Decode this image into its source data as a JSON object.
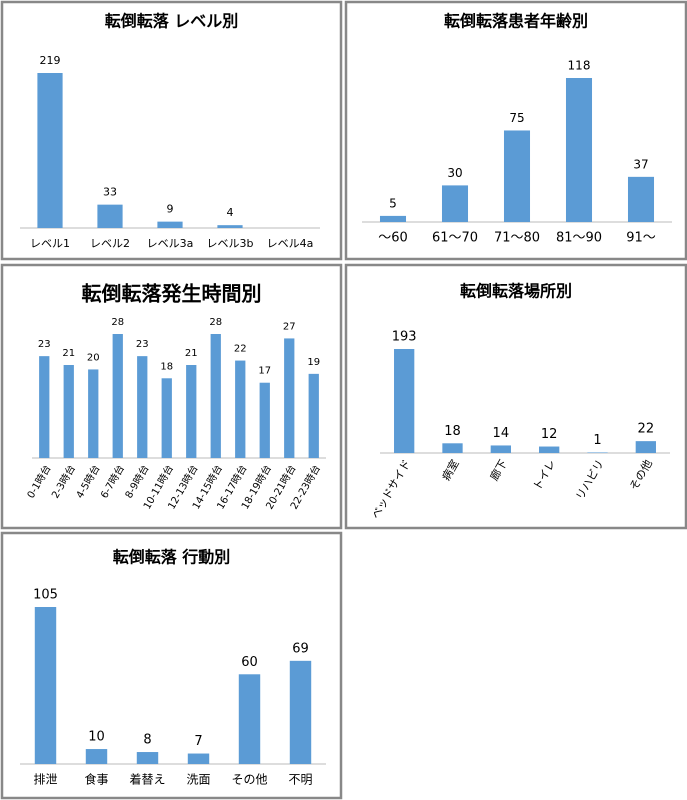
{
  "chart_data": [
    {
      "type": "bar",
      "title": "転倒転落 レベル別",
      "color": "#5b9bd5",
      "categories": [
        "レベル1",
        "レベル2",
        "レベル3a",
        "レベル3b",
        "レベル4a"
      ],
      "values": [
        219,
        33,
        9,
        4,
        0
      ]
    },
    {
      "type": "bar",
      "title": "転倒転落患者年齢別",
      "color": "#5b9bd5",
      "categories": [
        "～60",
        "61～70",
        "71～80",
        "81～90",
        "91～"
      ],
      "values": [
        5,
        30,
        75,
        118,
        37
      ]
    },
    {
      "type": "bar",
      "title": "転倒転落発生時間別",
      "color": "#5b9bd5",
      "categories": [
        "0-1時台",
        "2-3時台",
        "4-5時台",
        "6-7時台",
        "8-9時台",
        "10-11時台",
        "12-13時台",
        "14-15時台",
        "16-17時台",
        "18-19時台",
        "20-21時台",
        "22-23時台"
      ],
      "values": [
        23,
        21,
        20,
        28,
        23,
        18,
        21,
        28,
        22,
        17,
        27,
        19
      ]
    },
    {
      "type": "bar",
      "title": "転倒転落場所別",
      "color": "#5b9bd5",
      "categories": [
        "ベッドサイド",
        "病室",
        "廊下",
        "トイレ",
        "リハビリ",
        "その他"
      ],
      "values": [
        193,
        18,
        14,
        12,
        1,
        22
      ]
    },
    {
      "type": "bar",
      "title": "転倒転落 行動別",
      "color": "#5b9bd5",
      "categories": [
        "排泄",
        "食事",
        "着替え",
        "洗面",
        "その他",
        "不明"
      ],
      "values": [
        105,
        10,
        8,
        7,
        60,
        69
      ]
    }
  ]
}
